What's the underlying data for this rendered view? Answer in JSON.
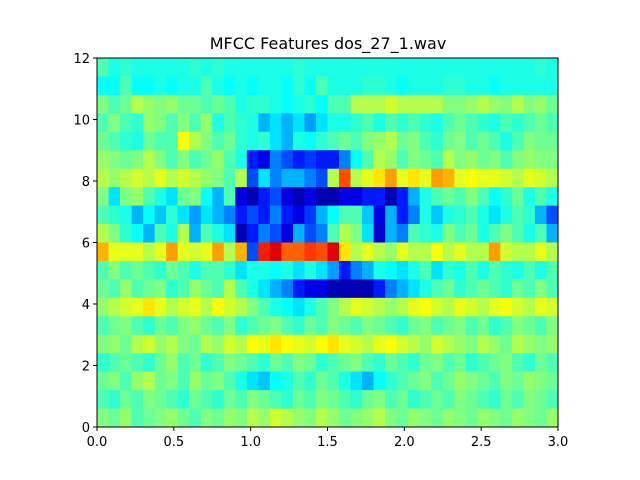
{
  "chart_data": {
    "type": "heatmap",
    "title": "MFCC Features dos_27_1.wav",
    "xlabel": "",
    "ylabel": "",
    "xlim": [
      0.0,
      3.0
    ],
    "ylim": [
      0,
      12
    ],
    "xticks": [
      "0.0",
      "0.5",
      "1.0",
      "1.5",
      "2.0",
      "2.5",
      "3.0"
    ],
    "yticks": [
      "0",
      "2",
      "4",
      "6",
      "8",
      "10",
      "12"
    ],
    "colormap": "jet",
    "value_range": [
      0,
      1
    ],
    "grid": false,
    "rows": [
      [
        0.45,
        0.4,
        0.42,
        0.4,
        0.4,
        0.4,
        0.4,
        0.4,
        0.42,
        0.4,
        0.42,
        0.4,
        0.4,
        0.4,
        0.4,
        0.4,
        0.4,
        0.42,
        0.4,
        0.4,
        0.4,
        0.4,
        0.4,
        0.4,
        0.4,
        0.4,
        0.4,
        0.4,
        0.4,
        0.4,
        0.4,
        0.4,
        0.4,
        0.4,
        0.4,
        0.4,
        0.4,
        0.4,
        0.42,
        0.4
      ],
      [
        0.38,
        0.38,
        0.45,
        0.38,
        0.38,
        0.4,
        0.38,
        0.4,
        0.4,
        0.45,
        0.4,
        0.38,
        0.4,
        0.38,
        0.4,
        0.4,
        0.38,
        0.42,
        0.38,
        0.45,
        0.4,
        0.4,
        0.4,
        0.42,
        0.42,
        0.4,
        0.38,
        0.4,
        0.4,
        0.4,
        0.42,
        0.42,
        0.4,
        0.4,
        0.38,
        0.4,
        0.4,
        0.4,
        0.4,
        0.4
      ],
      [
        0.5,
        0.45,
        0.48,
        0.55,
        0.52,
        0.5,
        0.52,
        0.48,
        0.48,
        0.45,
        0.48,
        0.45,
        0.4,
        0.42,
        0.42,
        0.4,
        0.38,
        0.4,
        0.42,
        0.38,
        0.45,
        0.45,
        0.55,
        0.55,
        0.55,
        0.58,
        0.55,
        0.55,
        0.55,
        0.55,
        0.5,
        0.5,
        0.52,
        0.55,
        0.52,
        0.5,
        0.55,
        0.5,
        0.52,
        0.48
      ],
      [
        0.45,
        0.5,
        0.45,
        0.42,
        0.52,
        0.5,
        0.45,
        0.5,
        0.45,
        0.52,
        0.4,
        0.45,
        0.42,
        0.4,
        0.3,
        0.35,
        0.3,
        0.35,
        0.28,
        0.35,
        0.4,
        0.4,
        0.42,
        0.45,
        0.4,
        0.45,
        0.42,
        0.45,
        0.42,
        0.4,
        0.45,
        0.48,
        0.45,
        0.42,
        0.4,
        0.45,
        0.42,
        0.45,
        0.48,
        0.45
      ],
      [
        0.48,
        0.45,
        0.42,
        0.4,
        0.48,
        0.45,
        0.45,
        0.62,
        0.55,
        0.5,
        0.45,
        0.48,
        0.42,
        0.4,
        0.42,
        0.35,
        0.3,
        0.4,
        0.38,
        0.42,
        0.45,
        0.48,
        0.45,
        0.5,
        0.52,
        0.55,
        0.48,
        0.5,
        0.45,
        0.42,
        0.48,
        0.5,
        0.45,
        0.48,
        0.45,
        0.4,
        0.45,
        0.5,
        0.48,
        0.48
      ],
      [
        0.52,
        0.5,
        0.48,
        0.5,
        0.55,
        0.5,
        0.45,
        0.5,
        0.45,
        0.48,
        0.52,
        0.45,
        0.4,
        0.15,
        0.1,
        0.25,
        0.2,
        0.15,
        0.18,
        0.15,
        0.15,
        0.25,
        0.38,
        0.45,
        0.55,
        0.52,
        0.45,
        0.5,
        0.48,
        0.45,
        0.55,
        0.5,
        0.52,
        0.48,
        0.5,
        0.45,
        0.5,
        0.52,
        0.5,
        0.5
      ],
      [
        0.55,
        0.52,
        0.55,
        0.58,
        0.55,
        0.6,
        0.55,
        0.58,
        0.55,
        0.52,
        0.5,
        0.45,
        0.55,
        0.2,
        0.35,
        0.25,
        0.3,
        0.3,
        0.25,
        0.2,
        0.55,
        0.8,
        0.55,
        0.6,
        0.65,
        0.72,
        0.6,
        0.65,
        0.6,
        0.72,
        0.7,
        0.6,
        0.62,
        0.6,
        0.6,
        0.58,
        0.55,
        0.6,
        0.58,
        0.55
      ],
      [
        0.5,
        0.35,
        0.5,
        0.52,
        0.45,
        0.4,
        0.35,
        0.48,
        0.5,
        0.38,
        0.3,
        0.45,
        0.1,
        0.05,
        0.15,
        0.2,
        0.1,
        0.05,
        0.1,
        0.05,
        0.05,
        0.1,
        0.1,
        0.15,
        0.15,
        0.05,
        0.15,
        0.3,
        0.4,
        0.45,
        0.48,
        0.45,
        0.5,
        0.45,
        0.38,
        0.42,
        0.48,
        0.4,
        0.45,
        0.4
      ],
      [
        0.45,
        0.42,
        0.4,
        0.3,
        0.38,
        0.32,
        0.42,
        0.35,
        0.28,
        0.35,
        0.3,
        0.25,
        0.15,
        0.2,
        0.15,
        0.25,
        0.15,
        0.1,
        0.18,
        0.3,
        0.38,
        0.45,
        0.45,
        0.32,
        0.1,
        0.3,
        0.15,
        0.25,
        0.4,
        0.32,
        0.4,
        0.42,
        0.45,
        0.4,
        0.35,
        0.4,
        0.45,
        0.42,
        0.3,
        0.2
      ],
      [
        0.55,
        0.5,
        0.42,
        0.38,
        0.3,
        0.45,
        0.4,
        0.55,
        0.3,
        0.45,
        0.4,
        0.35,
        0.05,
        0.15,
        0.25,
        0.2,
        0.1,
        0.3,
        0.2,
        0.25,
        0.45,
        0.55,
        0.5,
        0.35,
        0.08,
        0.3,
        0.25,
        0.45,
        0.42,
        0.4,
        0.5,
        0.45,
        0.48,
        0.4,
        0.45,
        0.5,
        0.45,
        0.4,
        0.45,
        0.3
      ],
      [
        0.7,
        0.6,
        0.6,
        0.6,
        0.55,
        0.6,
        0.72,
        0.6,
        0.58,
        0.6,
        0.72,
        0.55,
        0.7,
        0.2,
        0.85,
        0.9,
        0.78,
        0.78,
        0.82,
        0.8,
        0.9,
        0.65,
        0.55,
        0.6,
        0.55,
        0.52,
        0.6,
        0.55,
        0.55,
        0.62,
        0.55,
        0.6,
        0.55,
        0.55,
        0.72,
        0.58,
        0.55,
        0.55,
        0.6,
        0.55
      ],
      [
        0.45,
        0.5,
        0.45,
        0.48,
        0.45,
        0.42,
        0.48,
        0.45,
        0.4,
        0.45,
        0.45,
        0.42,
        0.35,
        0.4,
        0.4,
        0.38,
        0.4,
        0.35,
        0.4,
        0.35,
        0.28,
        0.15,
        0.25,
        0.3,
        0.4,
        0.38,
        0.35,
        0.4,
        0.45,
        0.35,
        0.42,
        0.4,
        0.45,
        0.4,
        0.45,
        0.42,
        0.4,
        0.45,
        0.4,
        0.45
      ],
      [
        0.48,
        0.45,
        0.52,
        0.45,
        0.48,
        0.5,
        0.42,
        0.45,
        0.52,
        0.48,
        0.45,
        0.55,
        0.45,
        0.4,
        0.35,
        0.3,
        0.25,
        0.15,
        0.1,
        0.1,
        0.05,
        0.05,
        0.05,
        0.05,
        0.15,
        0.25,
        0.3,
        0.35,
        0.4,
        0.45,
        0.48,
        0.42,
        0.45,
        0.48,
        0.45,
        0.42,
        0.48,
        0.45,
        0.5,
        0.45
      ],
      [
        0.52,
        0.55,
        0.58,
        0.6,
        0.65,
        0.6,
        0.55,
        0.58,
        0.6,
        0.55,
        0.62,
        0.58,
        0.55,
        0.5,
        0.45,
        0.4,
        0.38,
        0.35,
        0.4,
        0.45,
        0.5,
        0.55,
        0.6,
        0.58,
        0.55,
        0.52,
        0.55,
        0.6,
        0.62,
        0.58,
        0.55,
        0.6,
        0.58,
        0.55,
        0.6,
        0.62,
        0.58,
        0.55,
        0.6,
        0.58
      ],
      [
        0.45,
        0.48,
        0.5,
        0.45,
        0.42,
        0.48,
        0.45,
        0.5,
        0.52,
        0.48,
        0.45,
        0.5,
        0.42,
        0.45,
        0.48,
        0.5,
        0.45,
        0.42,
        0.48,
        0.45,
        0.5,
        0.48,
        0.45,
        0.5,
        0.48,
        0.45,
        0.42,
        0.48,
        0.5,
        0.45,
        0.48,
        0.5,
        0.45,
        0.48,
        0.42,
        0.45,
        0.5,
        0.48,
        0.45,
        0.5
      ],
      [
        0.5,
        0.52,
        0.48,
        0.55,
        0.58,
        0.52,
        0.55,
        0.5,
        0.48,
        0.55,
        0.52,
        0.58,
        0.55,
        0.62,
        0.6,
        0.65,
        0.62,
        0.6,
        0.58,
        0.62,
        0.65,
        0.6,
        0.58,
        0.55,
        0.6,
        0.62,
        0.58,
        0.55,
        0.52,
        0.58,
        0.55,
        0.52,
        0.5,
        0.55,
        0.52,
        0.48,
        0.55,
        0.52,
        0.5,
        0.52
      ],
      [
        0.42,
        0.45,
        0.48,
        0.45,
        0.42,
        0.48,
        0.52,
        0.45,
        0.48,
        0.42,
        0.45,
        0.5,
        0.48,
        0.45,
        0.42,
        0.48,
        0.45,
        0.5,
        0.48,
        0.42,
        0.45,
        0.48,
        0.5,
        0.45,
        0.42,
        0.48,
        0.45,
        0.42,
        0.48,
        0.5,
        0.45,
        0.48,
        0.42,
        0.45,
        0.48,
        0.5,
        0.45,
        0.42,
        0.48,
        0.45
      ],
      [
        0.48,
        0.5,
        0.45,
        0.52,
        0.55,
        0.48,
        0.5,
        0.45,
        0.52,
        0.48,
        0.5,
        0.45,
        0.4,
        0.35,
        0.32,
        0.38,
        0.4,
        0.45,
        0.42,
        0.48,
        0.45,
        0.4,
        0.35,
        0.3,
        0.38,
        0.42,
        0.45,
        0.48,
        0.5,
        0.45,
        0.48,
        0.52,
        0.5,
        0.48,
        0.45,
        0.5,
        0.48,
        0.52,
        0.5,
        0.48
      ],
      [
        0.45,
        0.42,
        0.48,
        0.45,
        0.5,
        0.48,
        0.45,
        0.42,
        0.48,
        0.45,
        0.42,
        0.48,
        0.45,
        0.5,
        0.48,
        0.45,
        0.42,
        0.48,
        0.45,
        0.5,
        0.48,
        0.45,
        0.42,
        0.48,
        0.5,
        0.45,
        0.48,
        0.42,
        0.45,
        0.48,
        0.45,
        0.5,
        0.48,
        0.45,
        0.42,
        0.48,
        0.45,
        0.5,
        0.48,
        0.45
      ],
      [
        0.5,
        0.48,
        0.52,
        0.45,
        0.48,
        0.5,
        0.52,
        0.48,
        0.45,
        0.5,
        0.48,
        0.52,
        0.5,
        0.55,
        0.52,
        0.58,
        0.55,
        0.52,
        0.5,
        0.55,
        0.52,
        0.48,
        0.5,
        0.52,
        0.55,
        0.5,
        0.48,
        0.52,
        0.5,
        0.48,
        0.52,
        0.5,
        0.48,
        0.52,
        0.5,
        0.48,
        0.52,
        0.5,
        0.48,
        0.52
      ]
    ]
  }
}
